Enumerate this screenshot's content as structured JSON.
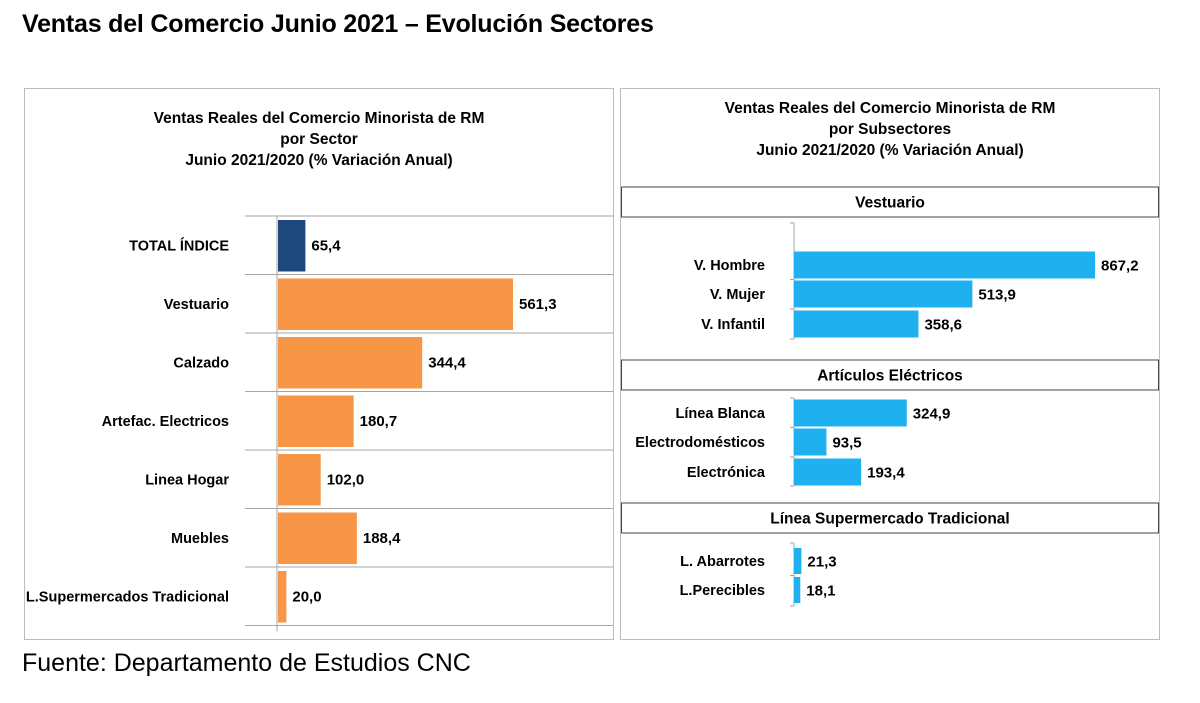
{
  "page": {
    "title": "Ventas del Comercio Junio 2021 – Evolución Sectores",
    "source": "Fuente: Departamento de Estudios CNC"
  },
  "colors": {
    "total": "#1f497d",
    "sector": "#f79646",
    "subsector": "#1fb0ef",
    "grid": "#a6a6a6"
  },
  "chart_data": [
    {
      "type": "bar",
      "orientation": "horizontal",
      "title": [
        "Ventas Reales del Comercio Minorista de RM",
        "por Sector",
        "Junio 2021/2020 (% Variación Anual)"
      ],
      "categories": [
        "TOTAL ÍNDICE",
        "Vestuario",
        "Calzado",
        "Artefac. Electricos",
        "Linea Hogar",
        "Muebles",
        "L.Supermercados Tradicional"
      ],
      "values": [
        65.4,
        561.3,
        344.4,
        180.7,
        102.0,
        188.4,
        20.0
      ],
      "value_labels": [
        "65,4",
        "561,3",
        "344,4",
        "180,7",
        "102,0",
        "188,4",
        "20,0"
      ],
      "xlim": [
        0,
        700
      ],
      "grid": true
    },
    {
      "type": "bar",
      "orientation": "horizontal",
      "title": [
        "Ventas Reales del Comercio Minorista de RM",
        "por Subsectores",
        "Junio 2021/2020 (% Variación Anual)"
      ],
      "xlim": [
        0,
        1050
      ],
      "groups": [
        {
          "name": "Vestuario",
          "categories": [
            "V. Hombre",
            "V. Mujer",
            "V. Infantil"
          ],
          "values": [
            867.2,
            513.9,
            358.6
          ],
          "value_labels": [
            "867,2",
            "513,9",
            "358,6"
          ]
        },
        {
          "name": "Artículos Eléctricos",
          "categories": [
            "Línea Blanca",
            "Electrodomésticos",
            "Electrónica"
          ],
          "values": [
            324.9,
            93.5,
            193.4
          ],
          "value_labels": [
            "324,9",
            "93,5",
            "193,4"
          ]
        },
        {
          "name": "Línea Supermercado Tradicional",
          "categories": [
            "L. Abarrotes",
            "L.Perecibles"
          ],
          "values": [
            21.3,
            18.1
          ],
          "value_labels": [
            "21,3",
            "18,1"
          ]
        }
      ]
    }
  ]
}
